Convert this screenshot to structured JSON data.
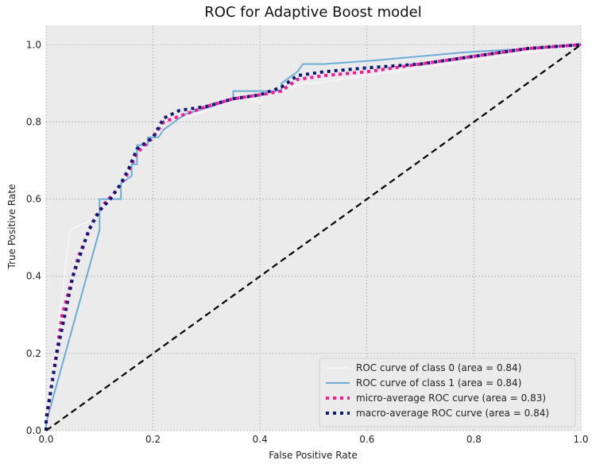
{
  "chart_data": {
    "type": "line",
    "title": "ROC for Adaptive Boost model",
    "xlabel": "False Positive Rate",
    "ylabel": "True Positive Rate",
    "xlim": [
      0.0,
      1.0
    ],
    "ylim": [
      0.0,
      1.05
    ],
    "xticks": [
      0.0,
      0.2,
      0.4,
      0.6,
      0.8,
      1.0
    ],
    "xtick_labels": [
      "0.0",
      "0.2",
      "0.4",
      "0.6",
      "0.8",
      "1.0"
    ],
    "yticks": [
      0.0,
      0.2,
      0.4,
      0.6,
      0.8,
      1.0
    ],
    "ytick_labels": [
      "0.0",
      "0.2",
      "0.4",
      "0.6",
      "0.8",
      "1.0"
    ],
    "grid": true,
    "legend_position": "lower-right",
    "background": "#ebebeb",
    "series": [
      {
        "name": "ROC curve of class 0 (area = 0.84)",
        "color": "#f5f5f5",
        "style": "solid",
        "x": [
          0.0,
          0.0,
          0.045,
          0.09,
          0.1,
          0.14,
          0.15,
          0.17,
          0.19,
          0.2,
          0.24,
          0.3,
          0.35,
          0.39,
          0.4,
          0.41,
          0.44,
          0.46,
          0.48,
          0.5,
          0.6,
          0.7,
          0.8,
          0.9,
          1.0
        ],
        "y": [
          0.0,
          0.02,
          0.52,
          0.55,
          0.58,
          0.62,
          0.66,
          0.72,
          0.74,
          0.76,
          0.8,
          0.83,
          0.86,
          0.86,
          0.85,
          0.88,
          0.88,
          0.89,
          0.9,
          0.9,
          0.92,
          0.94,
          0.96,
          0.98,
          1.0
        ]
      },
      {
        "name": "ROC curve of class 1 (area = 0.84)",
        "color": "#6aaed6",
        "style": "solid",
        "x": [
          0.0,
          0.0,
          0.1,
          0.1,
          0.12,
          0.14,
          0.14,
          0.16,
          0.16,
          0.17,
          0.17,
          0.19,
          0.19,
          0.21,
          0.22,
          0.26,
          0.31,
          0.35,
          0.35,
          0.39,
          0.4,
          0.42,
          0.44,
          0.44,
          0.47,
          0.48,
          0.52,
          0.62,
          0.78,
          0.9,
          1.0
        ],
        "y": [
          0.0,
          0.02,
          0.52,
          0.6,
          0.6,
          0.6,
          0.64,
          0.66,
          0.69,
          0.69,
          0.74,
          0.74,
          0.76,
          0.76,
          0.78,
          0.82,
          0.84,
          0.86,
          0.88,
          0.88,
          0.88,
          0.88,
          0.88,
          0.9,
          0.93,
          0.95,
          0.95,
          0.96,
          0.98,
          0.99,
          1.0
        ]
      },
      {
        "name": "micro-average ROC curve (area = 0.83)",
        "color": "#ff1493",
        "style": "dotted",
        "x": [
          0.0,
          0.0,
          0.03,
          0.06,
          0.09,
          0.11,
          0.13,
          0.15,
          0.17,
          0.2,
          0.22,
          0.26,
          0.3,
          0.35,
          0.4,
          0.44,
          0.47,
          0.52,
          0.6,
          0.7,
          0.8,
          0.9,
          1.0
        ],
        "y": [
          0.0,
          0.02,
          0.3,
          0.45,
          0.55,
          0.59,
          0.62,
          0.66,
          0.72,
          0.76,
          0.8,
          0.82,
          0.84,
          0.86,
          0.87,
          0.88,
          0.91,
          0.92,
          0.93,
          0.95,
          0.97,
          0.99,
          1.0
        ]
      },
      {
        "name": "macro-average ROC curve (area = 0.84)",
        "color": "#0a1a78",
        "style": "dotted",
        "x": [
          0.0,
          0.0,
          0.02,
          0.05,
          0.08,
          0.1,
          0.12,
          0.14,
          0.155,
          0.17,
          0.2,
          0.22,
          0.25,
          0.3,
          0.35,
          0.4,
          0.44,
          0.47,
          0.52,
          0.6,
          0.7,
          0.8,
          0.9,
          1.0
        ],
        "y": [
          0.0,
          0.03,
          0.2,
          0.4,
          0.52,
          0.57,
          0.6,
          0.64,
          0.68,
          0.73,
          0.76,
          0.81,
          0.83,
          0.84,
          0.86,
          0.87,
          0.89,
          0.92,
          0.93,
          0.94,
          0.95,
          0.97,
          0.99,
          1.0
        ]
      },
      {
        "name": "",
        "color": "#000000",
        "style": "dashed",
        "x": [
          0.0,
          1.0
        ],
        "y": [
          0.0,
          1.0
        ]
      }
    ]
  }
}
